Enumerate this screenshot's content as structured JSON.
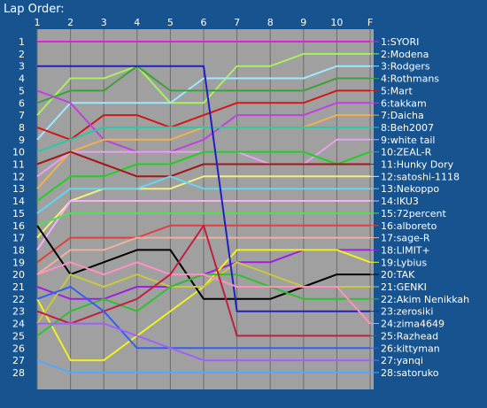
{
  "chart_data": {
    "type": "line",
    "title": "Lap Order:",
    "x_labels": [
      "1",
      "2",
      "3",
      "4",
      "5",
      "6",
      "7",
      "8",
      "9",
      "10",
      "F"
    ],
    "y_labels": [
      "1",
      "2",
      "3",
      "4",
      "5",
      "6",
      "7",
      "8",
      "9",
      "10",
      "11",
      "12",
      "13",
      "14",
      "15",
      "16",
      "17",
      "18",
      "19",
      "20",
      "21",
      "22",
      "23",
      "24",
      "25",
      "26",
      "27",
      "28"
    ],
    "plot_background": "#a0a0a0",
    "grid": true,
    "legend_placement": "right",
    "series": [
      {
        "label": "1:SYORI",
        "color": "#e020e0",
        "positions": [
          1,
          1,
          1,
          1,
          1,
          1,
          1,
          1,
          1,
          1,
          1
        ]
      },
      {
        "label": "2:Modena",
        "color": "#a8f060",
        "positions": [
          7,
          4,
          4,
          3,
          6,
          6,
          3,
          3,
          2,
          2,
          2
        ]
      },
      {
        "label": "3:Rodgers",
        "color": "#a0e8ff",
        "positions": [
          9,
          6,
          6,
          6,
          6,
          4,
          4,
          4,
          4,
          3,
          3
        ]
      },
      {
        "label": "4:Rothmans",
        "color": "#3ca03c",
        "positions": [
          6,
          5,
          5,
          3,
          5,
          5,
          5,
          5,
          5,
          4,
          4
        ]
      },
      {
        "label": "5:Mart",
        "color": "#d01818",
        "positions": [
          8,
          9,
          7,
          7,
          8,
          7,
          6,
          6,
          6,
          5,
          5
        ]
      },
      {
        "label": "6:takkam",
        "color": "#c040e0",
        "positions": [
          5,
          6,
          9,
          10,
          10,
          9,
          7,
          7,
          7,
          6,
          6
        ]
      },
      {
        "label": "7:Daicha",
        "color": "#f0b050",
        "positions": [
          13,
          10,
          9,
          9,
          9,
          8,
          8,
          8,
          8,
          7,
          7
        ]
      },
      {
        "label": "8:Beh2007",
        "color": "#28c8a8",
        "positions": [
          10,
          9,
          8,
          8,
          8,
          8,
          8,
          8,
          8,
          8,
          8
        ]
      },
      {
        "label": "9:white tail",
        "color": "#e8a0f0",
        "positions": [
          12,
          10,
          10,
          10,
          10,
          10,
          10,
          11,
          11,
          9,
          9
        ]
      },
      {
        "label": "10:ZEAL-R",
        "color": "#20d020",
        "positions": [
          14,
          12,
          12,
          11,
          11,
          10,
          10,
          10,
          10,
          11,
          10
        ]
      },
      {
        "label": "11:Hunky Dory",
        "color": "#a01818",
        "positions": [
          11,
          10,
          11,
          12,
          12,
          11,
          11,
          11,
          11,
          11,
          11
        ]
      },
      {
        "label": "12:satoshi-1118",
        "color": "#f0f080",
        "positions": [
          17,
          14,
          13,
          13,
          13,
          12,
          12,
          12,
          12,
          12,
          12
        ]
      },
      {
        "label": "13:Nekoppo",
        "color": "#60d8f0",
        "positions": [
          15,
          13,
          13,
          13,
          12,
          13,
          13,
          13,
          13,
          13,
          13
        ]
      },
      {
        "label": "14:IKU3",
        "color": "#f8b0f8",
        "positions": [
          18,
          14,
          14,
          14,
          14,
          14,
          14,
          14,
          14,
          14,
          14
        ]
      },
      {
        "label": "15:72percent",
        "color": "#50e050",
        "positions": [
          16,
          15,
          15,
          15,
          15,
          15,
          15,
          15,
          15,
          15,
          15
        ]
      },
      {
        "label": "16:alboreto",
        "color": "#e04040",
        "positions": [
          19,
          17,
          17,
          17,
          16,
          16,
          16,
          16,
          16,
          16,
          16
        ]
      },
      {
        "label": "17:sage-R",
        "color": "#f0b0a0",
        "positions": [
          20,
          18,
          18,
          17,
          17,
          17,
          17,
          17,
          17,
          17,
          17
        ]
      },
      {
        "label": "18:LIMIT+",
        "color": "#a020e0",
        "positions": [
          21,
          22,
          22,
          21,
          21,
          20,
          19,
          19,
          18,
          18,
          18
        ]
      },
      {
        "label": "19:Lybius",
        "color": "#f0f020",
        "positions": [
          22,
          27,
          27,
          25,
          23,
          21,
          18,
          18,
          18,
          18,
          19
        ]
      },
      {
        "label": "20:TAK",
        "color": "#000000",
        "positions": [
          16,
          20,
          19,
          18,
          18,
          22,
          22,
          22,
          21,
          20,
          20
        ]
      },
      {
        "label": "21:GENKI",
        "color": "#c8c840",
        "positions": [
          24,
          20,
          21,
          20,
          21,
          21,
          19,
          20,
          21,
          21,
          21
        ]
      },
      {
        "label": "22:Akim Nenikkah",
        "color": "#30c030",
        "positions": [
          25,
          23,
          22,
          23,
          21,
          20,
          20,
          21,
          22,
          22,
          22
        ]
      },
      {
        "label": "23:zerosiki",
        "color": "#2020c0",
        "positions": [
          3,
          3,
          3,
          3,
          3,
          3,
          23,
          23,
          23,
          23,
          23
        ]
      },
      {
        "label": "24:zima4649",
        "color": "#ff90c0",
        "positions": [
          20,
          19,
          20,
          19,
          20,
          20,
          21,
          21,
          21,
          21,
          24
        ]
      },
      {
        "label": "25:Razhead",
        "color": "#c02040",
        "positions": [
          23,
          24,
          23,
          22,
          20,
          16,
          25,
          25,
          25,
          25,
          25
        ]
      },
      {
        "label": "26:kittyman",
        "color": "#3060f0",
        "positions": [
          22,
          21,
          23,
          26,
          26,
          26,
          26,
          26,
          26,
          26,
          26
        ]
      },
      {
        "label": "27:yanqi",
        "color": "#a060ff",
        "positions": [
          24,
          24,
          24,
          25,
          26,
          27,
          27,
          27,
          27,
          27,
          27
        ]
      },
      {
        "label": "28:satoruko",
        "color": "#50a8ff",
        "positions": [
          27,
          28,
          28,
          28,
          28,
          28,
          28,
          28,
          28,
          28,
          28
        ]
      }
    ]
  }
}
